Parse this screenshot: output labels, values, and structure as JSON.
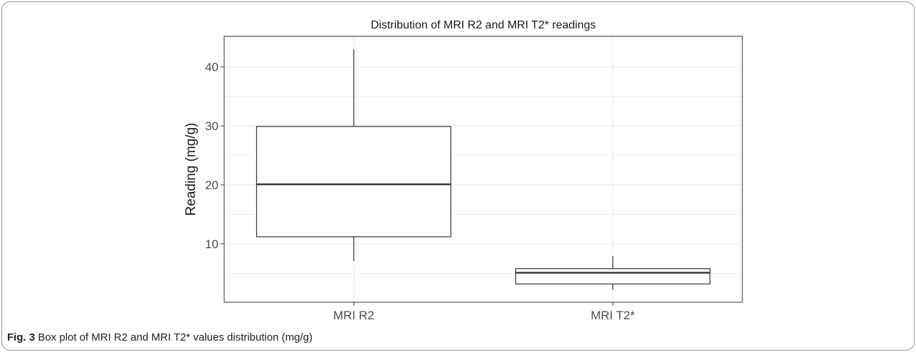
{
  "figure": {
    "label": "Fig. 3",
    "caption": "Box plot of MRI R2 and MRI T2* values distribution (mg/g)"
  },
  "chart_data": {
    "type": "box",
    "title": "Distribution of MRI R2 and MRI T2* readings",
    "xlabel": "",
    "ylabel": "Reading (mg/g)",
    "ylim": [
      0.1,
      45.2
    ],
    "yticks": [
      10,
      20,
      30,
      40
    ],
    "grid": true,
    "legend": "none",
    "categories": [
      "MRI R2",
      "MRI T2*"
    ],
    "boxes": [
      {
        "category": "MRI R2",
        "min": 7.1,
        "q1": 11.2,
        "median": 20.1,
        "q3": 29.9,
        "max": 43.0
      },
      {
        "category": "MRI T2*",
        "min": 2.2,
        "q1": 3.2,
        "median": 5.1,
        "q3": 5.8,
        "max": 7.9
      }
    ],
    "colors": {
      "box_fill": "#ffffff",
      "box_stroke": "#333333",
      "grid": "#ebebeb",
      "panel_border": "#333333"
    }
  }
}
